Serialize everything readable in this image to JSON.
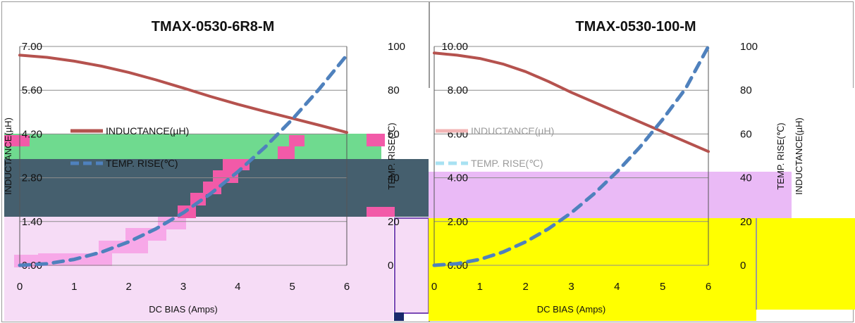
{
  "colors": {
    "inductance": "#b5524e",
    "inductance_faint": "#f2b4b4",
    "temp_left": "#4f81bd",
    "temp_faint": "#a8e2f2",
    "temp_glitch_pink": "#e64bb5",
    "temp_glitch_green": "#5aa02c",
    "temp_glitch_blue": "#2a4fe0",
    "overlay_green": "#6fda8f",
    "overlay_slate": "#455f6e",
    "overlay_pink_light": "#f6dcf6",
    "overlay_violet": "#eabaf6",
    "overlay_yellow": "#ffff00",
    "overlay_block_pink": "#f25aa8"
  },
  "legend": {
    "inductance": "INDUCTANCE(µH)",
    "temp_rise": "TEMP. RISE(℃)"
  },
  "chart_data": [
    {
      "type": "line",
      "title": "TMAX-0530-6R8-M",
      "xlabel": "DC BIAS  (Amps)",
      "ylabel_left": "INDUCTANCE(µH)",
      "ylabel_right": "TEMP. RISE(℃)",
      "xlim": [
        0,
        6
      ],
      "x_ticks": [
        "0",
        "1",
        "2",
        "3",
        "4",
        "5",
        "6"
      ],
      "ylim_left": [
        0,
        7
      ],
      "y_ticks_left": [
        "7.00",
        "5.60",
        "4.20",
        "2.80",
        "1.40",
        "0.00"
      ],
      "ylim_right": [
        0,
        100
      ],
      "y_ticks_right": [
        "100",
        "80",
        "60",
        "40",
        "20",
        "0"
      ],
      "grid": "horizontal",
      "legend_position": "left",
      "series": [
        {
          "name": "INDUCTANCE(µH)",
          "axis": "left",
          "style": "solid",
          "x": [
            0,
            0.5,
            1,
            1.5,
            2,
            2.5,
            3,
            3.5,
            4,
            4.5,
            5,
            5.5,
            6
          ],
          "y": [
            6.72,
            6.65,
            6.53,
            6.37,
            6.17,
            5.93,
            5.67,
            5.4,
            5.15,
            4.92,
            4.7,
            4.48,
            4.25
          ]
        },
        {
          "name": "TEMP. RISE(℃)",
          "axis": "right",
          "style": "dashed",
          "x": [
            0,
            0.5,
            1,
            1.5,
            2,
            2.5,
            3,
            3.5,
            4,
            4.5,
            5,
            5.5,
            6
          ],
          "y": [
            0,
            0.7,
            2.7,
            6,
            10.7,
            16.7,
            24,
            32.7,
            42.7,
            54,
            66.7,
            80.7,
            96
          ]
        }
      ]
    },
    {
      "type": "line",
      "title": "TMAX-0530-100-M",
      "xlabel": "DC BIAS  (Amps)",
      "ylabel_left": "INDUCTANCE(µH)",
      "ylabel_right": "TEMP. RISE(℃)",
      "xlim": [
        0,
        6
      ],
      "x_ticks": [
        "0",
        "1",
        "2",
        "3",
        "4",
        "5",
        "6"
      ],
      "ylim_left": [
        0,
        10
      ],
      "y_ticks_left": [
        "10.00",
        "8.00",
        "6.00",
        "4.00",
        "2.00",
        "0.00"
      ],
      "ylim_right": [
        0,
        100
      ],
      "y_ticks_right": [
        "100",
        "80",
        "60",
        "40",
        "20",
        "0"
      ],
      "grid": "horizontal",
      "legend_position": "left",
      "series": [
        {
          "name": "INDUCTANCE(µH)",
          "axis": "left",
          "style": "solid",
          "x": [
            0,
            0.5,
            1,
            1.5,
            2,
            2.5,
            3,
            3.5,
            4,
            4.5,
            5,
            5.5,
            6
          ],
          "y": [
            9.7,
            9.6,
            9.45,
            9.2,
            8.85,
            8.4,
            7.9,
            7.45,
            7.0,
            6.55,
            6.1,
            5.65,
            5.2
          ]
        },
        {
          "name": "TEMP. RISE(℃)",
          "axis": "right",
          "style": "dashed",
          "x": [
            0,
            0.5,
            1,
            1.5,
            2,
            2.5,
            3,
            3.5,
            4,
            4.5,
            5,
            5.5,
            6
          ],
          "y": [
            0,
            0.7,
            2.7,
            6,
            10.7,
            16.7,
            24,
            32.7,
            42.7,
            54,
            66.7,
            80.7,
            100
          ]
        }
      ]
    }
  ]
}
